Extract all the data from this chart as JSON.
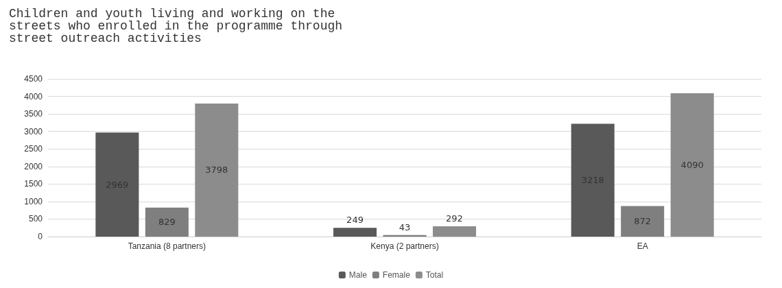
{
  "chart_data": {
    "type": "bar",
    "title": "Children and youth living and working on the\nstreets who enrolled in the programme through\nstreet outreach activities",
    "categories": [
      "Tanzania (8 partners)",
      "Kenya (2 partners)",
      "EA"
    ],
    "series": [
      {
        "name": "Male",
        "color": "#595959",
        "values": [
          2969,
          249,
          3218
        ]
      },
      {
        "name": "Female",
        "color": "#7f7f7f",
        "values": [
          829,
          43,
          872
        ]
      },
      {
        "name": "Total",
        "color": "#8c8c8c",
        "values": [
          3798,
          292,
          4090
        ]
      }
    ],
    "ylim": [
      0,
      4500
    ],
    "yticks": [
      0,
      500,
      1000,
      1500,
      2000,
      2500,
      3000,
      3500,
      4000,
      4500
    ],
    "grid": "y",
    "legend": "bottom",
    "data_labels": true
  }
}
